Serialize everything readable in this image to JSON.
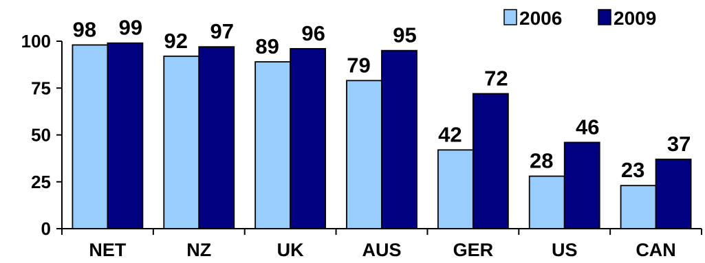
{
  "chart_data": {
    "type": "bar",
    "title": "",
    "xlabel": "",
    "ylabel": "",
    "categories": [
      "NET",
      "NZ",
      "UK",
      "AUS",
      "GER",
      "US",
      "CAN"
    ],
    "series": [
      {
        "name": "2006",
        "values": [
          98,
          92,
          89,
          79,
          42,
          28,
          23
        ],
        "color": "#99ccff"
      },
      {
        "name": "2009",
        "values": [
          99,
          97,
          96,
          95,
          72,
          46,
          37
        ],
        "color": "#000080"
      }
    ],
    "ylim": [
      0,
      100
    ],
    "yticks": [
      0,
      25,
      50,
      75,
      100
    ],
    "grid": false,
    "legend": "top-right",
    "data_labels": true
  }
}
